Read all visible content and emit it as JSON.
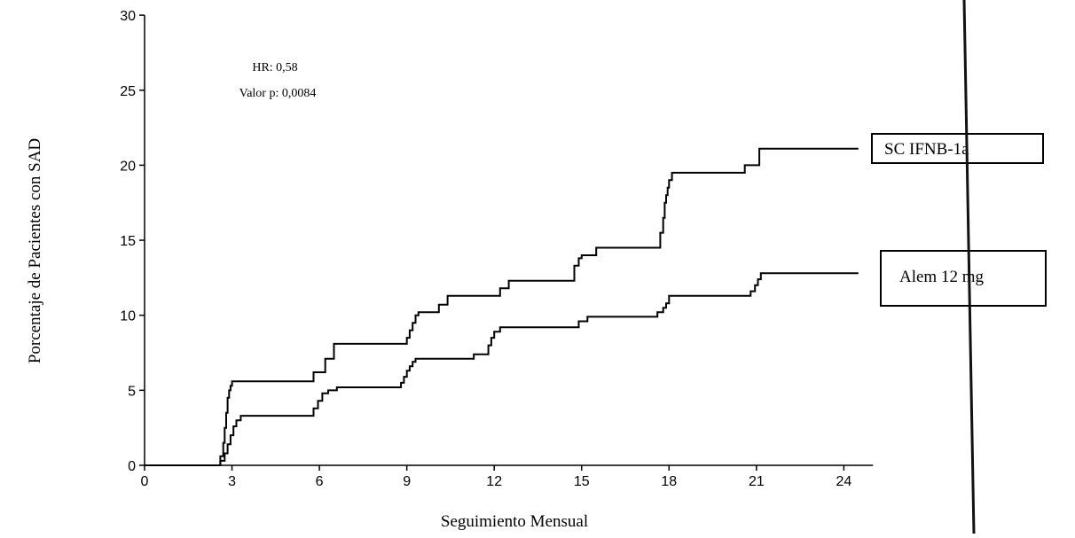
{
  "chart_data": {
    "type": "line",
    "step": true,
    "xlabel": "Seguimiento Mensual",
    "ylabel": "Porcentaje de Pacientes con SAD",
    "xlim": [
      0,
      25
    ],
    "ylim": [
      0,
      30
    ],
    "x_ticks": [
      "0",
      "3",
      "6",
      "9",
      "12",
      "15",
      "18",
      "21",
      "24"
    ],
    "y_ticks": [
      "0",
      "5",
      "10",
      "15",
      "20",
      "25",
      "30"
    ],
    "annotations": [
      "HR: 0,58",
      "Valor p: 0,0084"
    ],
    "grid": false,
    "legend_placement": "right",
    "series": [
      {
        "name": "SC IFNB-1a",
        "x": [
          0,
          2.6,
          2.7,
          2.75,
          2.8,
          2.85,
          2.9,
          2.95,
          3.0,
          5.5,
          5.8,
          6.2,
          6.5,
          8.9,
          9.0,
          9.1,
          9.2,
          9.3,
          9.4,
          9.5,
          10.1,
          10.4,
          11.8,
          12.2,
          12.5,
          14.6,
          14.75,
          14.9,
          15.0,
          15.5,
          17.6,
          17.7,
          17.8,
          17.85,
          17.9,
          17.95,
          18.0,
          18.1,
          20.0,
          20.6,
          21.1,
          24.5
        ],
        "y": [
          0,
          0.6,
          1.5,
          2.5,
          3.5,
          4.5,
          5.0,
          5.3,
          5.6,
          5.6,
          6.2,
          7.1,
          8.1,
          8.1,
          8.5,
          9.0,
          9.5,
          10.0,
          10.2,
          10.2,
          10.7,
          11.3,
          11.3,
          11.8,
          12.3,
          12.3,
          13.3,
          13.8,
          14.0,
          14.5,
          14.5,
          15.5,
          16.5,
          17.5,
          18.0,
          18.5,
          19.0,
          19.5,
          19.5,
          20.0,
          21.1,
          21.1
        ],
        "color": "#000000"
      },
      {
        "name": "Alem 12 mg",
        "x": [
          0,
          2.6,
          2.75,
          2.85,
          2.95,
          3.05,
          3.15,
          3.3,
          5.6,
          5.8,
          5.95,
          6.1,
          6.3,
          6.6,
          8.6,
          8.8,
          8.9,
          9.0,
          9.1,
          9.2,
          9.3,
          10.7,
          11.3,
          11.8,
          11.9,
          12.0,
          12.2,
          14.6,
          14.9,
          15.2,
          17.3,
          17.6,
          17.8,
          17.9,
          18.0,
          20.5,
          20.8,
          20.95,
          21.05,
          21.15,
          24.5
        ],
        "y": [
          0,
          0.3,
          0.8,
          1.4,
          2.0,
          2.6,
          3.0,
          3.3,
          3.3,
          3.8,
          4.3,
          4.8,
          5.0,
          5.2,
          5.2,
          5.5,
          5.9,
          6.3,
          6.6,
          6.9,
          7.1,
          7.1,
          7.4,
          8.0,
          8.5,
          8.9,
          9.2,
          9.2,
          9.6,
          9.9,
          9.9,
          10.2,
          10.5,
          10.8,
          11.3,
          11.3,
          11.6,
          12.0,
          12.4,
          12.8,
          12.8
        ],
        "color": "#000000"
      }
    ]
  }
}
